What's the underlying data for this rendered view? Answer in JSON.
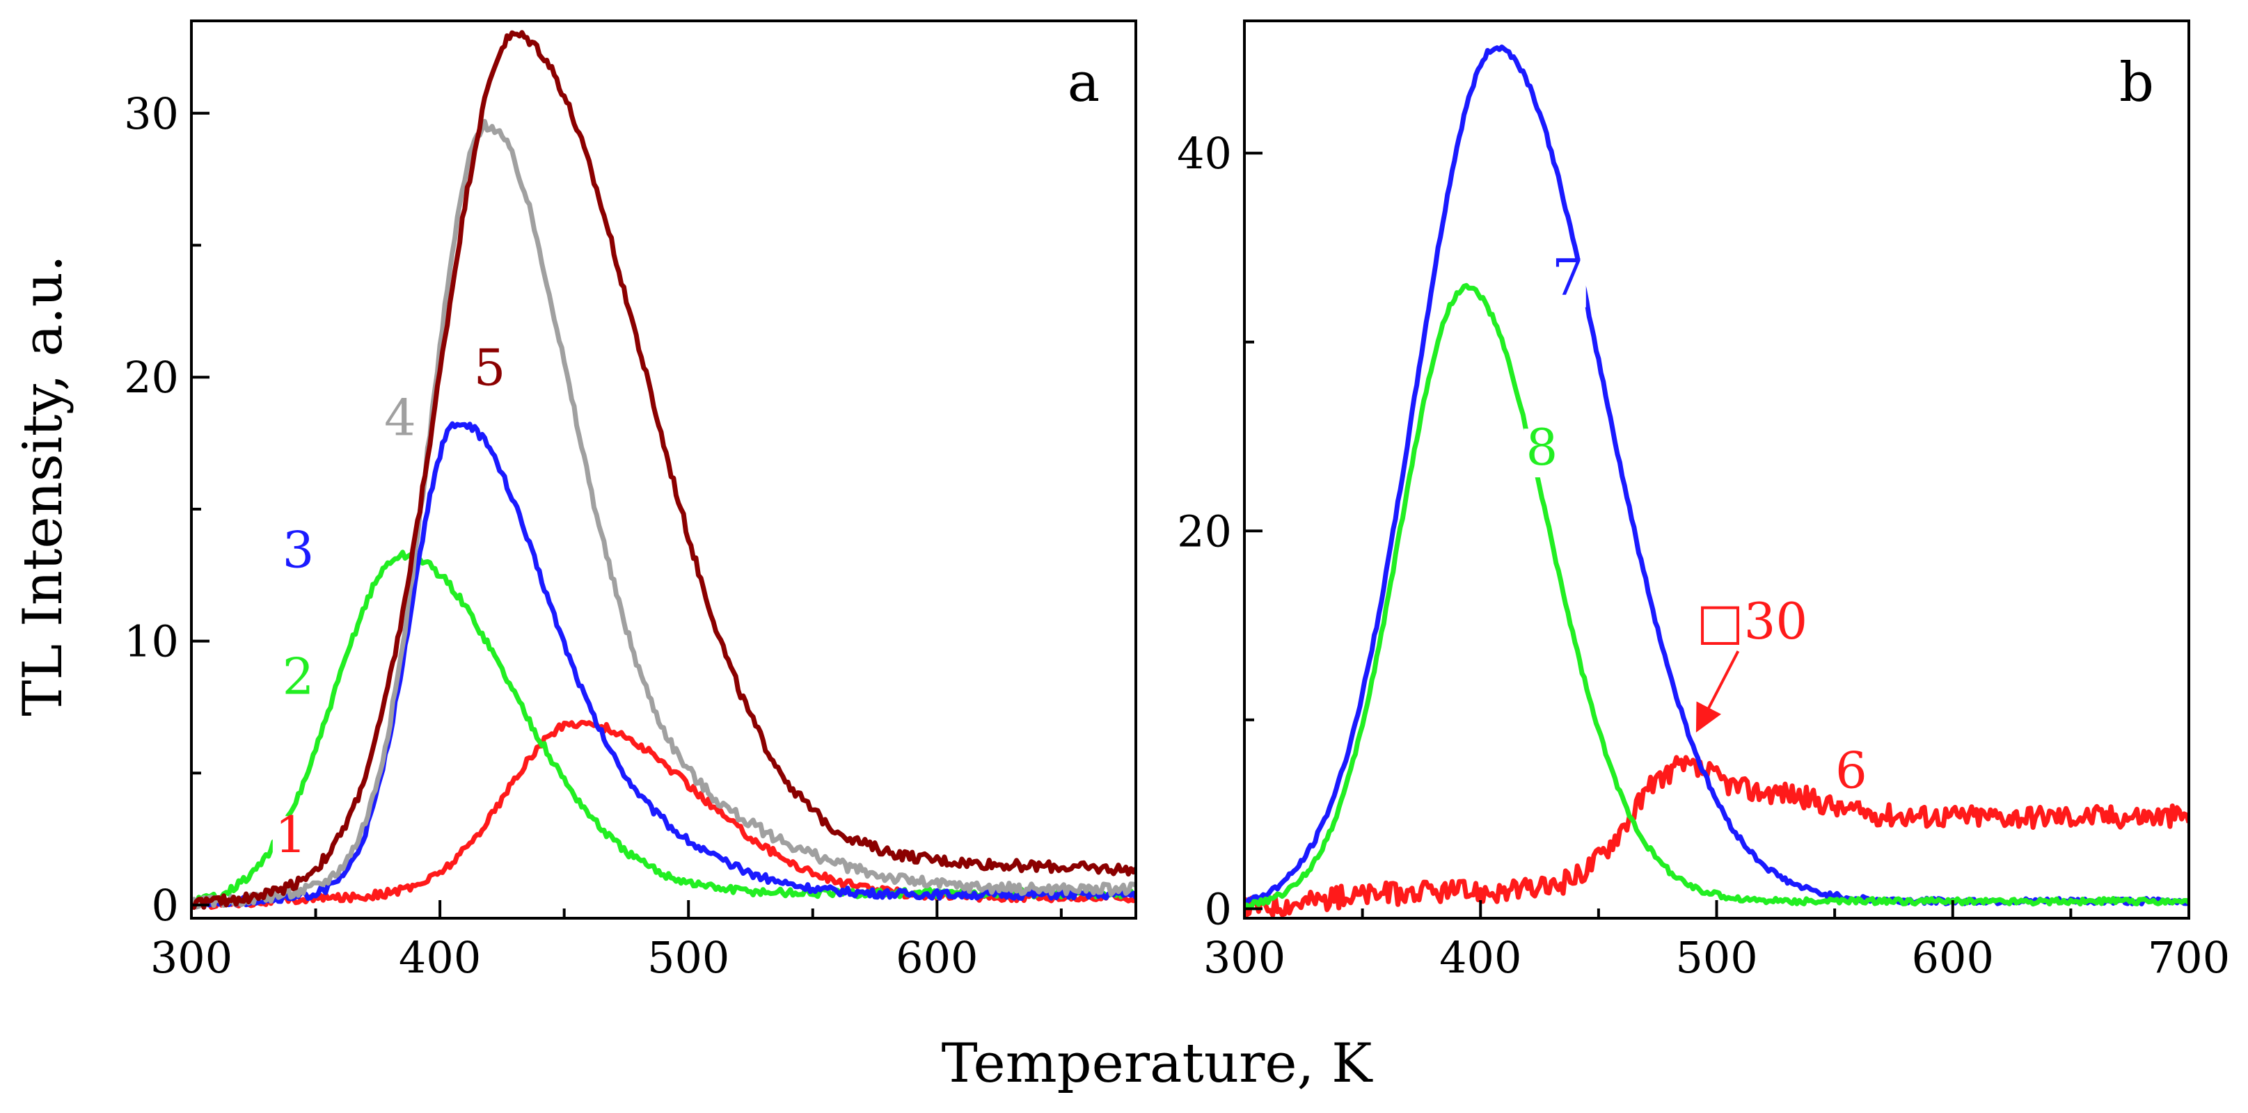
{
  "figure": {
    "xlabel": "Temperature, K",
    "ylabel": "TL Intensity, a.u."
  },
  "chart_data": [
    {
      "type": "line",
      "panel_label": "a",
      "xlim": [
        300,
        680
      ],
      "ylim": [
        -0.5,
        33.5
      ],
      "xticks": [
        300,
        400,
        500,
        600
      ],
      "yticks": [
        0,
        10,
        20,
        30
      ],
      "series": [
        {
          "name": "1",
          "color": "#ff1a1a",
          "peaks": [
            {
              "center": 455,
              "amp": 6.6,
              "sl": 28,
              "sr": 48
            }
          ],
          "baseline": 0.3,
          "noise": 0.15,
          "label_at": {
            "x": 340,
            "y": 2.0
          }
        },
        {
          "name": "2",
          "color": "#22ee22",
          "peaks": [
            {
              "center": 385,
              "amp": 12.8,
              "sl": 27,
              "sr": 44
            }
          ],
          "baseline": 0.45,
          "noise": 0.15,
          "label_at": {
            "x": 343,
            "y": 8.0
          }
        },
        {
          "name": "3",
          "color": "#1a1aff",
          "peaks": [
            {
              "center": 406,
              "amp": 17.2,
              "sl": 18,
              "sr": 32
            },
            {
              "center": 460,
              "amp": 3.0,
              "sl": 30,
              "sr": 40
            }
          ],
          "baseline": 0.4,
          "noise": 0.15,
          "label_at": {
            "x": 343,
            "y": 12.8
          }
        },
        {
          "name": "4",
          "color": "#a0a0a0",
          "peaks": [
            {
              "center": 418,
              "amp": 28.5,
              "sl": 22,
              "sr": 33
            },
            {
              "center": 480,
              "amp": 3.5,
              "sl": 30,
              "sr": 50
            }
          ],
          "baseline": 0.6,
          "noise": 0.2,
          "label_at": {
            "x": 384,
            "y": 17.8
          }
        },
        {
          "name": "5",
          "color": "#8b0000",
          "peaks": [
            {
              "center": 430,
              "amp": 32.3,
              "sl": 30,
              "sr": 50
            }
          ],
          "baseline": 0.6,
          "tail_amp": 1.0,
          "noise": 0.2,
          "label_at": {
            "x": 420,
            "y": 19.7
          }
        }
      ]
    },
    {
      "type": "line",
      "panel_label": "b",
      "xlim": [
        300,
        700
      ],
      "ylim": [
        -0.5,
        47
      ],
      "xticks": [
        300,
        400,
        500,
        600,
        700
      ],
      "yticks": [
        0,
        20,
        40
      ],
      "series": [
        {
          "name": "6",
          "color": "#ff1a1a",
          "peaks": [
            {
              "center": 485,
              "amp": 6.5,
              "sl": 22,
              "sr": 30
            }
          ],
          "baseline": 0.9,
          "step": 4.0,
          "noise": 0.6,
          "label_at": {
            "x": 557,
            "y": 6.4
          }
        },
        {
          "name": "7",
          "color": "#1a1aff",
          "peaks": [
            {
              "center": 407,
              "amp": 45.2,
              "sl": 34,
              "sr": 45
            }
          ],
          "baseline": 0.4,
          "noise": 0.15,
          "label_at": {
            "x": 437,
            "y": 32.5
          }
        },
        {
          "name": "8",
          "color": "#22ee22",
          "peaks": [
            {
              "center": 394,
              "amp": 32.5,
              "sl": 28,
              "sr": 35
            }
          ],
          "baseline": 0.4,
          "noise": 0.15,
          "label_at": {
            "x": 426,
            "y": 23.5
          }
        }
      ],
      "annotation": {
        "text": "□30",
        "color": "#ff1a1a",
        "text_at": {
          "x": 515,
          "y": 14.3
        },
        "arrow_to": {
          "x": 490,
          "y": 9.3
        }
      }
    }
  ]
}
